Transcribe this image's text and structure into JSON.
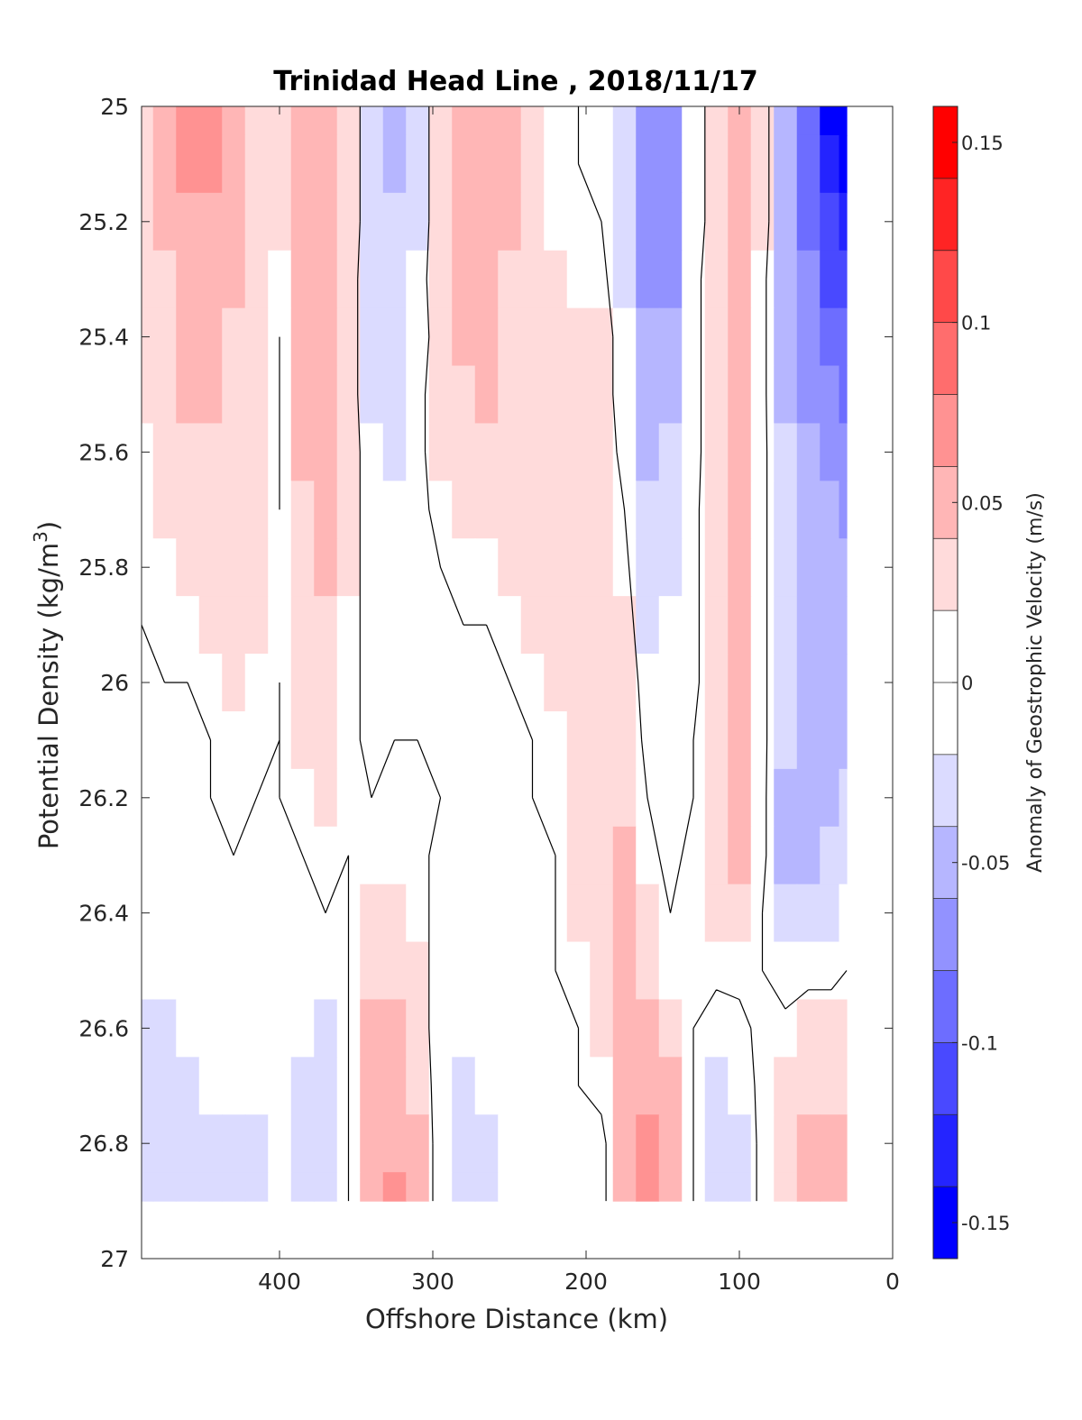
{
  "chart_data": {
    "type": "heatmap",
    "title": "Trinidad Head Line , 2018/11/17",
    "xlabel": "Offshore Distance (km)",
    "ylabel_main": "Potential Density (kg/m",
    "ylabel_sup": "3",
    "ylabel_close": ")",
    "colorbar_label": "Anomaly of Geostrophic Velocity (m/s)",
    "xlim": [
      490,
      0
    ],
    "ylim": [
      25,
      27
    ],
    "x_ticks": [
      400,
      300,
      200,
      100,
      0
    ],
    "x_tick_labels": [
      "400",
      "300",
      "200",
      "100",
      "0"
    ],
    "y_ticks": [
      25,
      25.2,
      25.4,
      25.6,
      25.8,
      26,
      26.2,
      26.4,
      26.6,
      26.8,
      27
    ],
    "y_tick_labels": [
      "25",
      "25.2",
      "25.4",
      "25.6",
      "25.8",
      "26",
      "26.2",
      "26.4",
      "26.6",
      "26.8",
      "27"
    ],
    "colorbar_range": [
      -0.16,
      0.16
    ],
    "colorbar_levels": 16,
    "colorbar_ticks": [
      0.15,
      0.1,
      0.05,
      0,
      -0.05,
      -0.1,
      -0.15
    ],
    "colorbar_tick_labels": [
      "0.15",
      "0.1",
      "0.05",
      "0",
      "-0.05",
      "-0.1",
      "-0.15"
    ],
    "colormap": {
      "negative": "#0000ff",
      "zero": "#ffffff",
      "positive": "#ff0000"
    },
    "grid": false,
    "contour_level": 0,
    "data_bottom_density": 26.9,
    "x_columns": [
      490,
      475,
      460,
      445,
      430,
      415,
      400,
      385,
      370,
      355,
      340,
      325,
      310,
      295,
      280,
      265,
      250,
      235,
      220,
      205,
      190,
      175,
      160,
      145,
      130,
      115,
      100,
      85,
      70,
      55,
      40,
      30
    ],
    "density_rows": [
      25.0,
      25.1,
      25.2,
      25.3,
      25.4,
      25.5,
      25.6,
      25.7,
      25.8,
      25.9,
      26.0,
      26.1,
      26.2,
      26.3,
      26.4,
      26.5,
      26.6,
      26.7,
      26.8,
      26.9
    ],
    "values": [
      [
        0.02,
        0.04,
        0.06,
        0.06,
        0.04,
        0.03,
        0.02,
        0.05,
        0.05,
        0.03,
        -0.03,
        -0.05,
        -0.03,
        0.03,
        0.05,
        0.05,
        0.04,
        0.02,
        0.01,
        0.0,
        0.0,
        -0.04,
        -0.08,
        -0.08,
        -0.02,
        0.02,
        0.05,
        0.02,
        -0.05,
        -0.1,
        -0.14,
        -0.15
      ],
      [
        0.02,
        0.04,
        0.06,
        0.06,
        0.04,
        0.03,
        0.02,
        0.05,
        0.05,
        0.03,
        -0.03,
        -0.05,
        -0.03,
        0.03,
        0.05,
        0.05,
        0.04,
        0.02,
        0.01,
        0.0,
        0.0,
        -0.04,
        -0.08,
        -0.08,
        -0.02,
        0.02,
        0.05,
        0.02,
        -0.05,
        -0.1,
        -0.13,
        -0.14
      ],
      [
        0.02,
        0.04,
        0.05,
        0.05,
        0.04,
        0.03,
        0.02,
        0.05,
        0.05,
        0.03,
        -0.03,
        -0.04,
        -0.03,
        0.03,
        0.04,
        0.05,
        0.04,
        0.02,
        0.01,
        0.01,
        0.0,
        -0.04,
        -0.07,
        -0.07,
        -0.02,
        0.02,
        0.04,
        0.02,
        -0.05,
        -0.09,
        -0.12,
        -0.13
      ],
      [
        0.02,
        0.03,
        0.05,
        0.05,
        0.04,
        0.03,
        0.01,
        0.04,
        0.05,
        0.02,
        -0.03,
        -0.04,
        -0.02,
        0.03,
        0.04,
        0.04,
        0.03,
        0.02,
        0.02,
        0.01,
        0.01,
        -0.03,
        -0.07,
        -0.07,
        -0.01,
        0.02,
        0.04,
        0.01,
        -0.05,
        -0.08,
        -0.11,
        -0.12
      ],
      [
        0.02,
        0.03,
        0.04,
        0.04,
        0.03,
        0.02,
        0.0,
        0.04,
        0.05,
        0.02,
        -0.03,
        -0.03,
        -0.02,
        0.02,
        0.04,
        0.04,
        0.03,
        0.02,
        0.02,
        0.02,
        0.02,
        -0.02,
        -0.06,
        -0.06,
        -0.01,
        0.02,
        0.04,
        0.01,
        -0.05,
        -0.07,
        -0.09,
        -0.1
      ],
      [
        0.02,
        0.03,
        0.04,
        0.04,
        0.03,
        0.02,
        0.0,
        0.04,
        0.04,
        0.02,
        -0.03,
        -0.03,
        -0.01,
        0.02,
        0.03,
        0.04,
        0.03,
        0.03,
        0.02,
        0.02,
        0.02,
        -0.02,
        -0.06,
        -0.05,
        -0.01,
        0.02,
        0.04,
        0.01,
        -0.05,
        -0.07,
        -0.08,
        -0.09
      ],
      [
        0.01,
        0.02,
        0.03,
        0.03,
        0.03,
        0.02,
        0.0,
        0.04,
        0.04,
        0.02,
        -0.02,
        -0.03,
        -0.01,
        0.02,
        0.03,
        0.03,
        0.03,
        0.03,
        0.02,
        0.02,
        0.02,
        -0.01,
        -0.05,
        -0.04,
        -0.01,
        0.02,
        0.04,
        0.01,
        -0.04,
        -0.06,
        -0.07,
        -0.08
      ],
      [
        0.01,
        0.02,
        0.02,
        0.02,
        0.02,
        0.02,
        0.0,
        0.03,
        0.04,
        0.02,
        -0.02,
        -0.02,
        -0.01,
        0.01,
        0.02,
        0.02,
        0.02,
        0.03,
        0.03,
        0.02,
        0.03,
        0.0,
        -0.04,
        -0.03,
        -0.01,
        0.03,
        0.05,
        0.01,
        -0.04,
        -0.05,
        -0.06,
        -0.07
      ],
      [
        0.01,
        0.01,
        0.02,
        0.02,
        0.02,
        0.02,
        0.01,
        0.03,
        0.04,
        0.02,
        -0.02,
        -0.02,
        0.0,
        0.0,
        0.01,
        0.01,
        0.02,
        0.02,
        0.03,
        0.02,
        0.03,
        0.01,
        -0.04,
        -0.03,
        -0.01,
        0.03,
        0.05,
        0.01,
        -0.04,
        -0.05,
        -0.05,
        -0.06
      ],
      [
        0.0,
        0.01,
        0.01,
        0.02,
        0.02,
        0.02,
        0.01,
        0.02,
        0.03,
        0.01,
        -0.01,
        -0.01,
        0.0,
        0.0,
        0.0,
        0.0,
        0.01,
        0.02,
        0.02,
        0.02,
        0.03,
        0.02,
        -0.03,
        -0.02,
        -0.01,
        0.03,
        0.05,
        0.01,
        -0.04,
        -0.05,
        -0.05,
        -0.05
      ],
      [
        0.0,
        0.0,
        0.0,
        0.01,
        0.02,
        0.01,
        0.0,
        0.02,
        0.03,
        0.01,
        -0.01,
        -0.01,
        0.0,
        0.0,
        0.0,
        0.0,
        0.0,
        0.01,
        0.02,
        0.02,
        0.03,
        0.03,
        -0.02,
        -0.02,
        -0.01,
        0.03,
        0.05,
        0.01,
        -0.04,
        -0.05,
        -0.05,
        -0.05
      ],
      [
        -0.01,
        0.0,
        0.0,
        0.0,
        0.01,
        0.01,
        0.0,
        0.02,
        0.03,
        0.01,
        -0.01,
        0.0,
        0.0,
        0.0,
        0.0,
        0.0,
        0.0,
        0.0,
        0.01,
        0.02,
        0.03,
        0.03,
        -0.01,
        -0.02,
        0.0,
        0.03,
        0.05,
        0.01,
        -0.04,
        -0.05,
        -0.05,
        -0.05
      ],
      [
        -0.01,
        -0.01,
        -0.01,
        0.0,
        0.01,
        0.0,
        0.0,
        0.01,
        0.02,
        0.01,
        0.0,
        0.01,
        0.01,
        0.0,
        0.0,
        0.0,
        0.0,
        0.0,
        0.01,
        0.02,
        0.03,
        0.03,
        0.0,
        -0.01,
        0.0,
        0.03,
        0.05,
        0.01,
        -0.05,
        -0.05,
        -0.05,
        -0.04
      ],
      [
        -0.02,
        -0.01,
        -0.01,
        -0.01,
        0.0,
        -0.01,
        -0.01,
        0.0,
        0.01,
        0.0,
        0.01,
        0.01,
        0.01,
        -0.01,
        -0.01,
        0.0,
        0.0,
        0.0,
        0.0,
        0.02,
        0.03,
        0.04,
        0.01,
        -0.01,
        0.01,
        0.03,
        0.04,
        0.01,
        -0.05,
        -0.05,
        -0.04,
        -0.04
      ],
      [
        -0.02,
        -0.02,
        -0.02,
        -0.01,
        -0.01,
        -0.01,
        -0.01,
        -0.01,
        0.0,
        0.0,
        0.02,
        0.02,
        0.01,
        -0.01,
        -0.01,
        -0.01,
        0.0,
        0.0,
        0.0,
        0.02,
        0.03,
        0.04,
        0.02,
        0.0,
        0.01,
        0.02,
        0.03,
        0.0,
        -0.04,
        -0.03,
        -0.03,
        -0.02
      ],
      [
        -0.02,
        -0.02,
        -0.02,
        -0.02,
        -0.01,
        -0.01,
        -0.01,
        -0.01,
        0.0,
        0.0,
        0.03,
        0.03,
        0.02,
        -0.02,
        -0.02,
        -0.01,
        -0.01,
        0.0,
        0.0,
        0.01,
        0.03,
        0.04,
        0.03,
        0.01,
        0.01,
        0.01,
        0.01,
        0.0,
        -0.02,
        -0.01,
        -0.01,
        0.0
      ],
      [
        -0.03,
        -0.03,
        -0.02,
        -0.02,
        -0.02,
        -0.02,
        -0.02,
        -0.02,
        -0.03,
        0.0,
        0.04,
        0.04,
        0.02,
        -0.02,
        -0.02,
        -0.02,
        -0.01,
        -0.01,
        0.0,
        0.0,
        0.03,
        0.04,
        0.04,
        0.03,
        0.0,
        -0.02,
        -0.01,
        0.01,
        0.01,
        0.02,
        0.02,
        0.02
      ],
      [
        -0.03,
        -0.03,
        -0.03,
        -0.02,
        -0.02,
        -0.02,
        -0.02,
        -0.03,
        -0.04,
        0.0,
        0.05,
        0.05,
        0.03,
        -0.02,
        -0.03,
        -0.02,
        -0.02,
        -0.01,
        0.0,
        0.0,
        0.01,
        0.04,
        0.05,
        0.04,
        0.0,
        -0.03,
        -0.02,
        0.01,
        0.02,
        0.03,
        0.03,
        0.03
      ],
      [
        -0.03,
        -0.03,
        -0.03,
        -0.03,
        -0.03,
        -0.03,
        -0.02,
        -0.03,
        -0.04,
        0.0,
        0.05,
        0.05,
        0.04,
        -0.02,
        -0.03,
        -0.03,
        -0.02,
        -0.01,
        0.0,
        -0.01,
        -0.01,
        0.04,
        0.06,
        0.05,
        0.0,
        -0.04,
        -0.03,
        0.01,
        0.02,
        0.04,
        0.04,
        0.04
      ],
      [
        -0.03,
        -0.03,
        -0.03,
        -0.03,
        -0.03,
        -0.03,
        -0.02,
        -0.03,
        -0.04,
        0.0,
        0.05,
        0.06,
        0.04,
        -0.02,
        -0.03,
        -0.03,
        -0.02,
        -0.01,
        0.0,
        -0.01,
        -0.01,
        0.04,
        0.06,
        0.05,
        0.0,
        -0.04,
        -0.03,
        0.01,
        0.02,
        0.05,
        0.05,
        0.04
      ]
    ]
  }
}
